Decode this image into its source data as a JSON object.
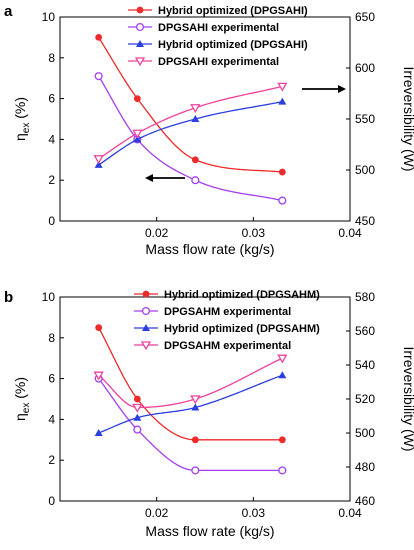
{
  "figure": {
    "panels": [
      {
        "letter": "a",
        "xlabel": "Mass flow rate (kg/s)",
        "ylabel_left": "η",
        "ylabel_left_sub": "ex",
        "ylabel_left_unit": " (%)",
        "ylabel_right": "Irreversibility (W)",
        "legend": [
          "Hybrid optimized (DPGSAHI)",
          "DPGSAHI experimental",
          "Hybrid optimized (DPGSAHI)",
          "DPGSAHI experimental"
        ]
      },
      {
        "letter": "b",
        "xlabel": "Mass flow rate (kg/s)",
        "ylabel_left": "η",
        "ylabel_left_sub": "ex",
        "ylabel_left_unit": " (%)",
        "ylabel_right": "Irreversibility (W)",
        "legend": [
          "Hybrid optimized (DPGSAHM)",
          "DPGSAHM experimental",
          "Hybrid optimized (DPGSAHM)",
          "DPGSAHM experimental"
        ]
      }
    ]
  },
  "chart_data": [
    {
      "type": "line",
      "panel": "a",
      "x": [
        0.014,
        0.018,
        0.024,
        0.033
      ],
      "xlim": [
        0.01,
        0.04
      ],
      "xticks": [
        "0.02",
        "0.03",
        "0.04"
      ],
      "ylim_left": [
        0,
        10
      ],
      "yticks_left": [
        "0",
        "2",
        "4",
        "6",
        "8",
        "10"
      ],
      "ylim_right": [
        450,
        650
      ],
      "yticks_right": [
        "450",
        "500",
        "550",
        "600",
        "650"
      ],
      "series": [
        {
          "name": "Hybrid optimized (DPGSAHI)",
          "axis": "left",
          "color": "#ee2a2a",
          "marker": "circle-filled",
          "values": [
            9.0,
            6.0,
            3.0,
            2.4
          ]
        },
        {
          "name": "DPGSAHI experimental",
          "axis": "left",
          "color": "#a43ff0",
          "marker": "circle-open",
          "values": [
            7.1,
            4.0,
            2.0,
            1.0
          ]
        },
        {
          "name": "Hybrid optimized (DPGSAHI)",
          "axis": "right",
          "color": "#2b3fe0",
          "marker": "triangle-up-filled",
          "values": [
            505,
            530,
            550,
            567
          ]
        },
        {
          "name": "DPGSAHI experimental",
          "axis": "right",
          "color": "#f0419c",
          "marker": "triangle-down-open",
          "values": [
            511,
            536,
            561,
            582
          ]
        }
      ],
      "legend_position": "top"
    },
    {
      "type": "line",
      "panel": "b",
      "x": [
        0.014,
        0.018,
        0.024,
        0.033
      ],
      "xlim": [
        0.01,
        0.04
      ],
      "xticks": [
        "0.02",
        "0.03",
        "0.04"
      ],
      "ylim_left": [
        0,
        10
      ],
      "yticks_left": [
        "0",
        "2",
        "4",
        "6",
        "8",
        "10"
      ],
      "ylim_right": [
        460,
        580
      ],
      "yticks_right": [
        "460",
        "480",
        "500",
        "520",
        "540",
        "560",
        "580"
      ],
      "series": [
        {
          "name": "Hybrid optimized (DPGSAHM)",
          "axis": "left",
          "color": "#ee2a2a",
          "marker": "circle-filled",
          "values": [
            8.5,
            5.0,
            3.0,
            3.0
          ]
        },
        {
          "name": "DPGSAHM experimental",
          "axis": "left",
          "color": "#a43ff0",
          "marker": "circle-open",
          "values": [
            6.0,
            3.5,
            1.5,
            1.5
          ]
        },
        {
          "name": "Hybrid optimized (DPGSAHM)",
          "axis": "right",
          "color": "#2b3fe0",
          "marker": "triangle-up-filled",
          "values": [
            500,
            509,
            515,
            534
          ]
        },
        {
          "name": "DPGSAHM experimental",
          "axis": "right",
          "color": "#f0419c",
          "marker": "triangle-down-open",
          "values": [
            534,
            515,
            520,
            544
          ]
        }
      ],
      "legend_position": "top"
    }
  ]
}
